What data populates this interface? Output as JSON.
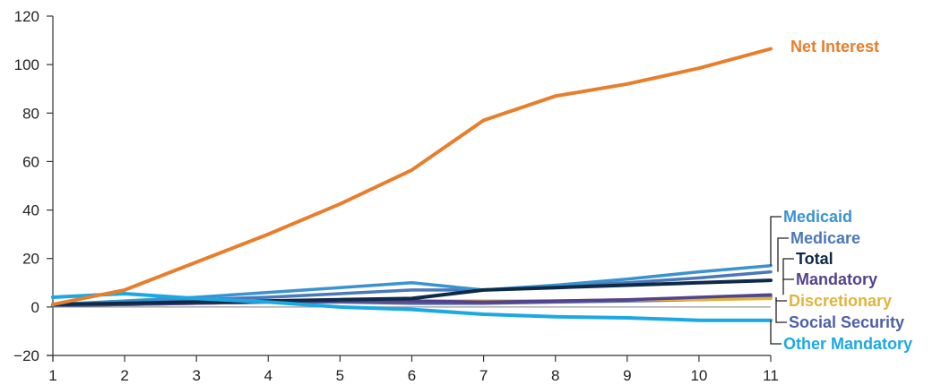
{
  "chart_data": {
    "type": "line",
    "title": "",
    "xlabel": "",
    "ylabel": "",
    "x": [
      1,
      2,
      3,
      4,
      5,
      6,
      7,
      8,
      9,
      10,
      11
    ],
    "xlim": [
      1,
      11
    ],
    "ylim": [
      -20,
      120
    ],
    "x_ticks": [
      "1",
      "2",
      "3",
      "4",
      "5",
      "6",
      "7",
      "8",
      "9",
      "10",
      "11"
    ],
    "y_ticks": [
      "120",
      "100",
      "80",
      "60",
      "40",
      "20",
      "0",
      "−20"
    ],
    "y_tick_values": [
      120,
      100,
      80,
      60,
      40,
      20,
      0,
      -20
    ],
    "grid": false,
    "zero_line": true,
    "legend": "direct labels at right",
    "series": [
      {
        "name": "Net Interest",
        "color": "#E87E2B",
        "values": [
          1,
          7,
          18.5,
          30,
          42.5,
          56.5,
          77,
          87,
          92,
          98.5,
          106.5
        ]
      },
      {
        "name": "Medicaid",
        "color": "#3A93CF",
        "values": [
          1,
          2.5,
          4,
          6,
          8,
          10,
          7,
          9,
          11.5,
          14.5,
          17
        ]
      },
      {
        "name": "Medicare",
        "color": "#4A78B8",
        "values": [
          0.5,
          1.5,
          3,
          4,
          5.5,
          7,
          7,
          8.5,
          10,
          12,
          14.5
        ]
      },
      {
        "name": "Total",
        "color": "#0E2A47",
        "values": [
          1,
          1.5,
          2,
          2.5,
          3,
          3.5,
          7,
          8,
          9,
          10,
          11
        ]
      },
      {
        "name": "Mandatory",
        "color": "#52438C",
        "values": [
          0.5,
          1,
          1.5,
          2,
          2.5,
          2.5,
          2,
          2.5,
          3,
          4,
          5
        ]
      },
      {
        "name": "Discretionary",
        "color": "#E0B43C",
        "values": [
          0.5,
          1,
          1.5,
          2,
          2.5,
          2.5,
          2.5,
          2.5,
          3,
          3,
          3.5
        ]
      },
      {
        "name": "Social Security",
        "color": "#4C5FA8",
        "values": [
          0.5,
          1,
          1.5,
          2,
          2,
          1.5,
          1.5,
          2,
          2.5,
          3,
          4
        ]
      },
      {
        "name": "Other Mandatory",
        "color": "#1CA9E3",
        "values": [
          4,
          5.5,
          3.5,
          2,
          0,
          -1,
          -3,
          -4,
          -4.5,
          -5.5,
          -5.5
        ]
      }
    ]
  }
}
